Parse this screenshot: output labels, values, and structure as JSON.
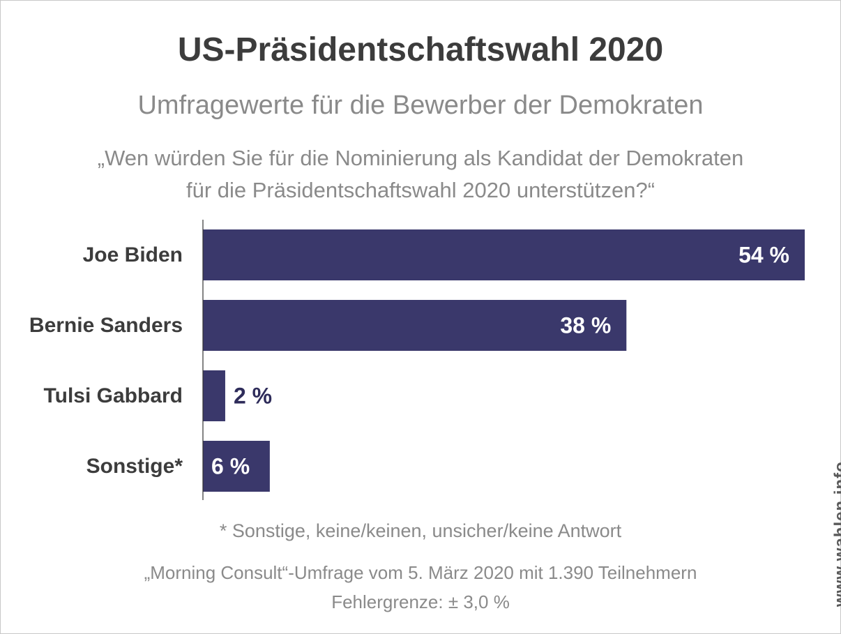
{
  "header": {
    "title": "US-Präsidentschaftswahl 2020",
    "subtitle": "Umfragewerte für die Bewerber der Demokraten",
    "question_line1": "„Wen würden Sie für die Nominierung als Kandidat der Demokraten",
    "question_line2": "für die Präsidentschaftswahl 2020 unterstützen?“"
  },
  "chart_data": {
    "type": "bar",
    "orientation": "horizontal",
    "categories": [
      "Joe Biden",
      "Bernie Sanders",
      "Tulsi Gabbard",
      "Sonstige*"
    ],
    "values": [
      54,
      38,
      2,
      6
    ],
    "value_labels": [
      "54 %",
      "38 %",
      "2 %",
      "6 %"
    ],
    "unit": "%",
    "xlim": [
      0,
      54
    ],
    "grid": false,
    "legend": "none"
  },
  "footer": {
    "footnote": "* Sonstige, keine/keinen, unsicher/keine Antwort",
    "source_line1": "„Morning Consult“-Umfrage vom 5. März 2020 mit 1.390 Teilnehmern",
    "source_line2": "Fehlergrenze: ± 3,0 %",
    "brand": "www.wahlen.info"
  },
  "colors": {
    "bar": "#3a386b",
    "label_inside": "#ffffff",
    "label_outside": "#2e2c5a",
    "category_text": "#3c3c3c"
  }
}
